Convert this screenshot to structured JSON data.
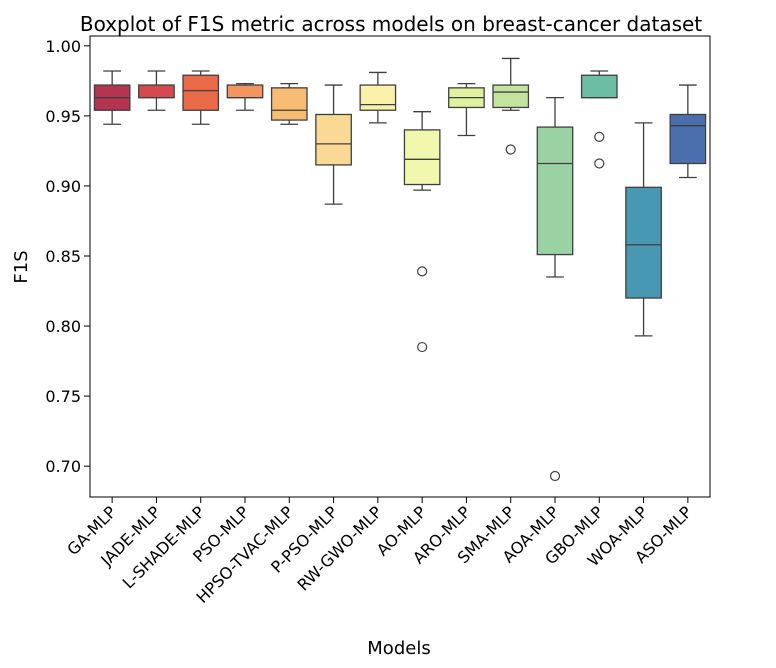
{
  "chart_data": {
    "type": "boxplot",
    "title": "Boxplot of F1S metric across models on breast-cancer dataset",
    "xlabel": "Models",
    "ylabel": "F1S",
    "ylim": [
      0.678,
      1.007
    ],
    "yticks": [
      "0.70",
      "0.75",
      "0.80",
      "0.85",
      "0.90",
      "0.95",
      "1.00"
    ],
    "grid": false,
    "legend": "none",
    "categories": [
      "GA-MLP",
      "JADE-MLP",
      "L-SHADE-MLP",
      "PSO-MLP",
      "HPSO-TVAC-MLP",
      "P-PSO-MLP",
      "RW-GWO-MLP",
      "AO-MLP",
      "ARO-MLP",
      "SMA-MLP",
      "AOA-MLP",
      "GBO-MLP",
      "WOA-MLP",
      "ASO-MLP"
    ],
    "boxes": [
      {
        "min": 0.944,
        "q1": 0.954,
        "median": 0.963,
        "q3": 0.972,
        "max": 0.982,
        "outliers": [],
        "color": "#b5344f"
      },
      {
        "min": 0.954,
        "q1": 0.963,
        "median": 0.963,
        "q3": 0.972,
        "max": 0.982,
        "outliers": [],
        "color": "#d6494f"
      },
      {
        "min": 0.944,
        "q1": 0.954,
        "median": 0.968,
        "q3": 0.979,
        "max": 0.982,
        "outliers": [],
        "color": "#ea6a47"
      },
      {
        "min": 0.954,
        "q1": 0.963,
        "median": 0.963,
        "q3": 0.972,
        "max": 0.973,
        "outliers": [],
        "color": "#f4945e"
      },
      {
        "min": 0.944,
        "q1": 0.947,
        "median": 0.954,
        "q3": 0.97,
        "max": 0.973,
        "outliers": [],
        "color": "#f7bd74"
      },
      {
        "min": 0.887,
        "q1": 0.915,
        "median": 0.93,
        "q3": 0.951,
        "max": 0.972,
        "outliers": [],
        "color": "#f9d993"
      },
      {
        "min": 0.945,
        "q1": 0.954,
        "median": 0.958,
        "q3": 0.972,
        "max": 0.981,
        "outliers": [],
        "color": "#f9f0aa"
      },
      {
        "min": 0.897,
        "q1": 0.901,
        "median": 0.919,
        "q3": 0.94,
        "max": 0.953,
        "outliers": [
          0.839,
          0.785
        ],
        "color": "#f1f7ad"
      },
      {
        "min": 0.936,
        "q1": 0.956,
        "median": 0.963,
        "q3": 0.97,
        "max": 0.973,
        "outliers": [],
        "color": "#e0f2a0"
      },
      {
        "min": 0.954,
        "q1": 0.956,
        "median": 0.967,
        "q3": 0.972,
        "max": 0.991,
        "outliers": [
          0.926
        ],
        "color": "#c3e49f"
      },
      {
        "min": 0.835,
        "q1": 0.851,
        "median": 0.916,
        "q3": 0.942,
        "max": 0.963,
        "outliers": [
          0.693
        ],
        "color": "#9ad2a3"
      },
      {
        "min": 0.963,
        "q1": 0.963,
        "median": 0.963,
        "q3": 0.979,
        "max": 0.982,
        "outliers": [
          0.935,
          0.916
        ],
        "color": "#6bbda4"
      },
      {
        "min": 0.793,
        "q1": 0.82,
        "median": 0.858,
        "q3": 0.899,
        "max": 0.945,
        "outliers": [],
        "color": "#4898b3"
      },
      {
        "min": 0.906,
        "q1": 0.916,
        "median": 0.943,
        "q3": 0.951,
        "max": 0.972,
        "outliers": [],
        "color": "#4b6fae"
      }
    ]
  }
}
